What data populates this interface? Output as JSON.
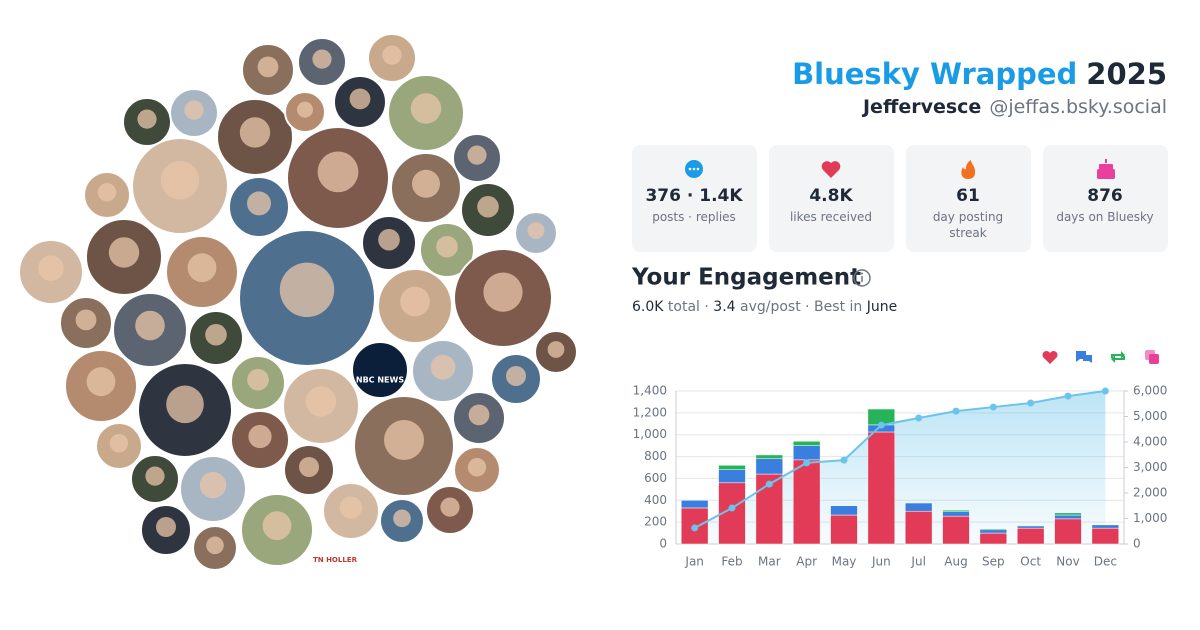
{
  "header": {
    "title": "Bluesky Wrapped",
    "year": "2025",
    "display_name": "Jeffervesce",
    "handle": "@jeffas.bsky.social"
  },
  "avatars": {
    "labels": [
      "NBC NEWS",
      "TN HOLLER"
    ]
  },
  "stats": [
    {
      "value": "376 · 1.4K",
      "label": "posts · replies"
    },
    {
      "value": "4.8K",
      "label": "likes received"
    },
    {
      "value": "61",
      "label": "day posting streak"
    },
    {
      "value": "876",
      "label": "days on Bluesky"
    }
  ],
  "engagement": {
    "title": "Your Engagement",
    "summary": [
      "6.0K",
      " total · ",
      "3.4",
      " avg/post · Best in ",
      "June"
    ]
  },
  "chart_data": {
    "type": "bar",
    "stacked": true,
    "grid": true,
    "categories": [
      "Jan",
      "Feb",
      "Mar",
      "Apr",
      "May",
      "Jun",
      "Jul",
      "Aug",
      "Sep",
      "Oct",
      "Nov",
      "Dec"
    ],
    "series": [
      {
        "color": "#e23b57",
        "values": [
          330,
          560,
          640,
          770,
          265,
          1025,
          300,
          255,
          100,
          145,
          230,
          145
        ]
      },
      {
        "color": "#3a7fe0",
        "values": [
          70,
          120,
          140,
          130,
          85,
          65,
          75,
          40,
          30,
          20,
          35,
          30
        ]
      },
      {
        "color": "#27b35a",
        "values": [
          0,
          40,
          35,
          40,
          0,
          145,
          0,
          15,
          10,
          0,
          20,
          0
        ]
      },
      {
        "color": "#ea3f9d",
        "values": [
          0,
          0,
          0,
          0,
          0,
          0,
          0,
          0,
          0,
          0,
          0,
          0
        ]
      },
      {
        "color": "#6cc4ea",
        "axis": "y2",
        "values": [
          630,
          1410,
          2350,
          3180,
          3290,
          4660,
          4940,
          5210,
          5370,
          5530,
          5800,
          6000
        ]
      }
    ],
    "ylim": [
      0,
      1400
    ],
    "yticks": [
      0,
      200,
      400,
      600,
      800,
      {
        "value": 1000,
        "label": "1,000"
      },
      {
        "value": 1200,
        "label": "1,200"
      },
      {
        "value": 1400,
        "label": "1,400"
      }
    ],
    "y2lim": [
      0,
      6000
    ],
    "y2ticks": [
      0,
      {
        "value": 1000,
        "label": "1,000"
      },
      {
        "value": 2000,
        "label": "2,000"
      },
      {
        "value": 3000,
        "label": "3,000"
      },
      {
        "value": 4000,
        "label": "4,000"
      },
      {
        "value": 5000,
        "label": "5,000"
      },
      {
        "value": 6000,
        "label": "6,000"
      }
    ]
  }
}
